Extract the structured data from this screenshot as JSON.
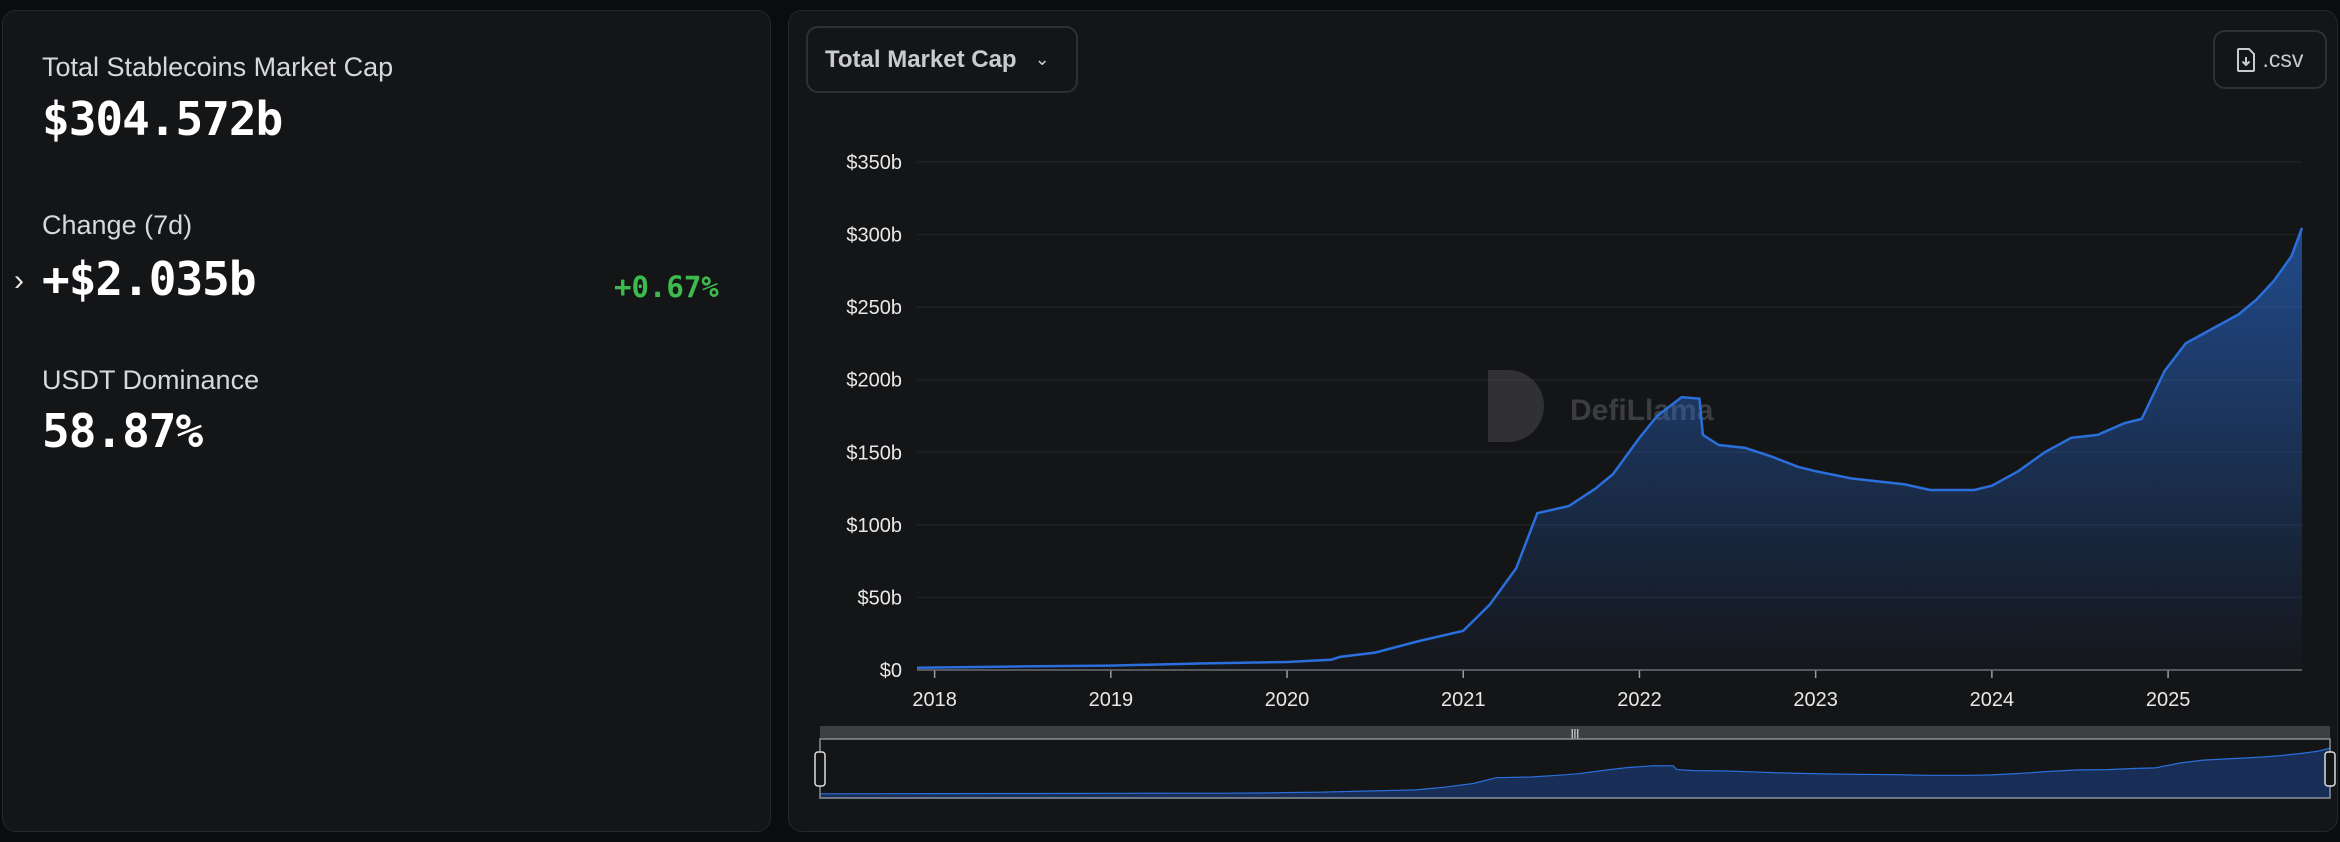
{
  "stats": {
    "market_cap_label": "Total Stablecoins Market Cap",
    "market_cap_value": "$304.572b",
    "change_label": "Change (7d)",
    "change_value": "+$2.035b",
    "change_percent": "+0.67%",
    "dominance_label": "USDT Dominance",
    "dominance_value": "58.87%"
  },
  "toolbar": {
    "metric_select": "Total Market Cap",
    "csv_label": ".csv"
  },
  "watermark": "DefiLlama",
  "colors": {
    "accent": "#2a6fdb",
    "positive": "#3dba4e"
  },
  "chart_data": {
    "type": "area",
    "title": "",
    "xlabel": "",
    "ylabel": "",
    "ylim": [
      0,
      350
    ],
    "y_ticks": [
      "$0",
      "$50b",
      "$100b",
      "$150b",
      "$200b",
      "$250b",
      "$300b",
      "$350b"
    ],
    "x_ticks": [
      "2018",
      "2019",
      "2020",
      "2021",
      "2022",
      "2023",
      "2024",
      "2025"
    ],
    "grid": true,
    "legend": "none",
    "x": [
      2017.9,
      2018.5,
      2019.0,
      2019.5,
      2020.0,
      2020.25,
      2020.3,
      2020.5,
      2020.75,
      2021.0,
      2021.05,
      2021.15,
      2021.3,
      2021.42,
      2021.6,
      2021.75,
      2021.85,
      2022.0,
      2022.1,
      2022.24,
      2022.34,
      2022.36,
      2022.45,
      2022.6,
      2022.75,
      2022.9,
      2023.0,
      2023.2,
      2023.5,
      2023.65,
      2023.9,
      2024.0,
      2024.15,
      2024.3,
      2024.45,
      2024.6,
      2024.75,
      2024.85,
      2024.98,
      2025.1,
      2025.25,
      2025.4,
      2025.5,
      2025.6,
      2025.7,
      2025.76
    ],
    "values": [
      1.5,
      2.5,
      3,
      4.5,
      5.5,
      7,
      9,
      12,
      20,
      27,
      33,
      45,
      70,
      108,
      113,
      125,
      135,
      160,
      175,
      188,
      187,
      162,
      155,
      153,
      147,
      140,
      137,
      132,
      128,
      124,
      124,
      127,
      137,
      150,
      160,
      162,
      170,
      173,
      206,
      225,
      235,
      245,
      255,
      268,
      285,
      304.6
    ],
    "unit": "USD billions",
    "has_range_brush": true
  }
}
